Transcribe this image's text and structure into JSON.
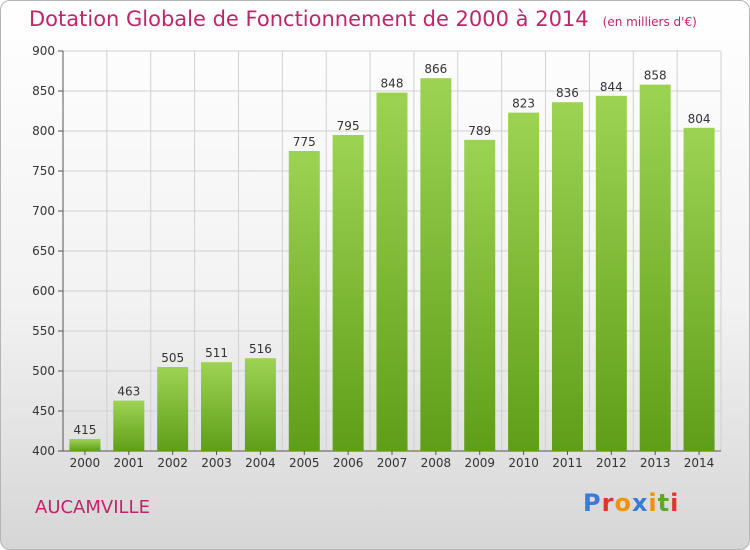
{
  "title": "Dotation Globale de Fonctionnement de 2000 à 2014",
  "unit_note": "(en milliers d'€)",
  "city": "AUCAMVILLE",
  "logo": {
    "text": "Proxiti",
    "letter_colors": [
      "#3a7bd5",
      "#e5332a",
      "#f39200",
      "#3a7bd5",
      "#f39200",
      "#5aa832",
      "#e5332a"
    ]
  },
  "colors": {
    "title": "#c0246a",
    "bar_top": "#9dd353",
    "bar_bottom": "#5f9e18",
    "grid": "#d0d0d0"
  },
  "chart_data": {
    "type": "bar",
    "categories": [
      "2000",
      "2001",
      "2002",
      "2003",
      "2004",
      "2005",
      "2006",
      "2007",
      "2008",
      "2009",
      "2010",
      "2011",
      "2012",
      "2013",
      "2014"
    ],
    "values": [
      415,
      463,
      505,
      511,
      516,
      775,
      795,
      848,
      866,
      789,
      823,
      836,
      844,
      858,
      804
    ],
    "ylim": [
      400,
      900
    ],
    "yticks": [
      400,
      450,
      500,
      550,
      600,
      650,
      700,
      750,
      800,
      850,
      900
    ],
    "grid": true,
    "data_labels": true,
    "xlabel": "",
    "ylabel": ""
  }
}
